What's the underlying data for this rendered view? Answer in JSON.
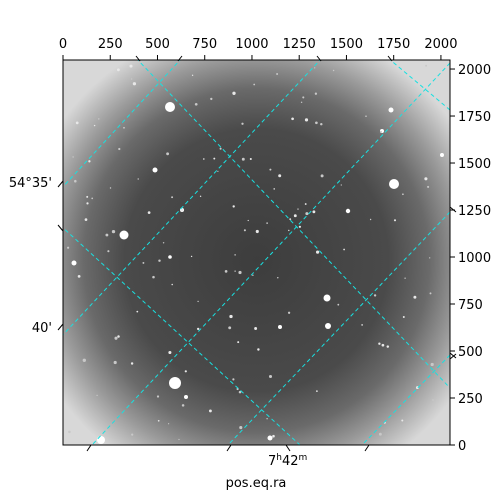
{
  "figure": {
    "xlabel": "pos.eq.ra",
    "ra_tick_main": "7",
    "ra_tick_h": "h",
    "ra_tick_val": "42",
    "ra_tick_m": "m",
    "dec_tick_1": "54°35'",
    "dec_tick_2": "40'"
  },
  "top_ticks": [
    "0",
    "250",
    "500",
    "750",
    "1000",
    "1250",
    "1500",
    "1750",
    "2000"
  ],
  "right_ticks": [
    "0",
    "250",
    "500",
    "750",
    "1000",
    "1250",
    "1500",
    "1750",
    "2000"
  ],
  "chart_data": {
    "type": "other",
    "description_x_range": [
      0,
      2048
    ],
    "description_y_range": [
      0,
      2048
    ],
    "xlim": [
      0,
      2048
    ],
    "ylim": [
      0,
      2048
    ],
    "grid": true,
    "grid_color": "#00e0e0"
  }
}
